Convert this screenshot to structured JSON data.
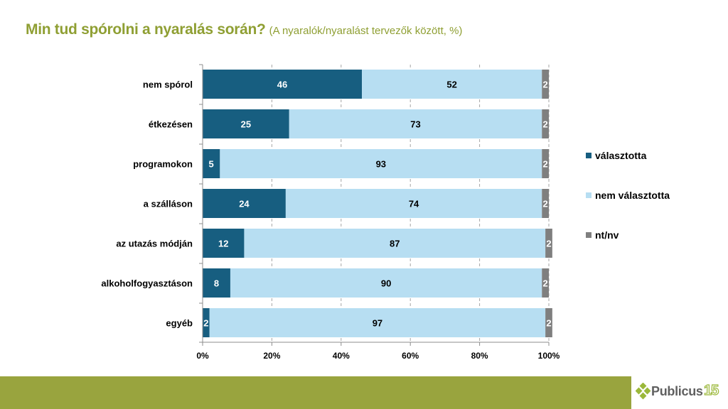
{
  "title": {
    "main": "Min tud spórolni a nyaralás során?",
    "sub": "(A nyaralók/nyaralást tervezők között, %)"
  },
  "chart_data": {
    "type": "bar",
    "orientation": "horizontal",
    "stacked": "percent",
    "title": "Min tud spórolni a nyaralás során?",
    "subtitle": "(A nyaralók/nyaralást tervezők között, %)",
    "categories": [
      "nem spórol",
      "étkezésen",
      "programokon",
      "a szálláson",
      "az utazás módján",
      "alkoholfogyasztáson",
      "egyéb"
    ],
    "series": [
      {
        "name": "választotta",
        "color": "#175e80",
        "values": [
          46,
          25,
          5,
          24,
          12,
          8,
          2
        ]
      },
      {
        "name": "nem választotta",
        "color": "#b7def2",
        "values": [
          52,
          73,
          93,
          74,
          87,
          90,
          97
        ]
      },
      {
        "name": "nt/nv",
        "color": "#7f7f7f",
        "values": [
          2,
          2,
          2,
          2,
          2,
          2,
          2
        ]
      }
    ],
    "xlim": [
      0,
      100
    ],
    "xticks": [
      "0%",
      "20%",
      "40%",
      "60%",
      "80%",
      "100%"
    ],
    "xtick_values": [
      0,
      20,
      40,
      60,
      80,
      100
    ],
    "grid": "vertical dashed",
    "legend": "right",
    "xlabel": "",
    "ylabel": ""
  },
  "footer": {
    "brand": "Publicus",
    "brand_number": "15",
    "bar_color": "#99a43e"
  }
}
